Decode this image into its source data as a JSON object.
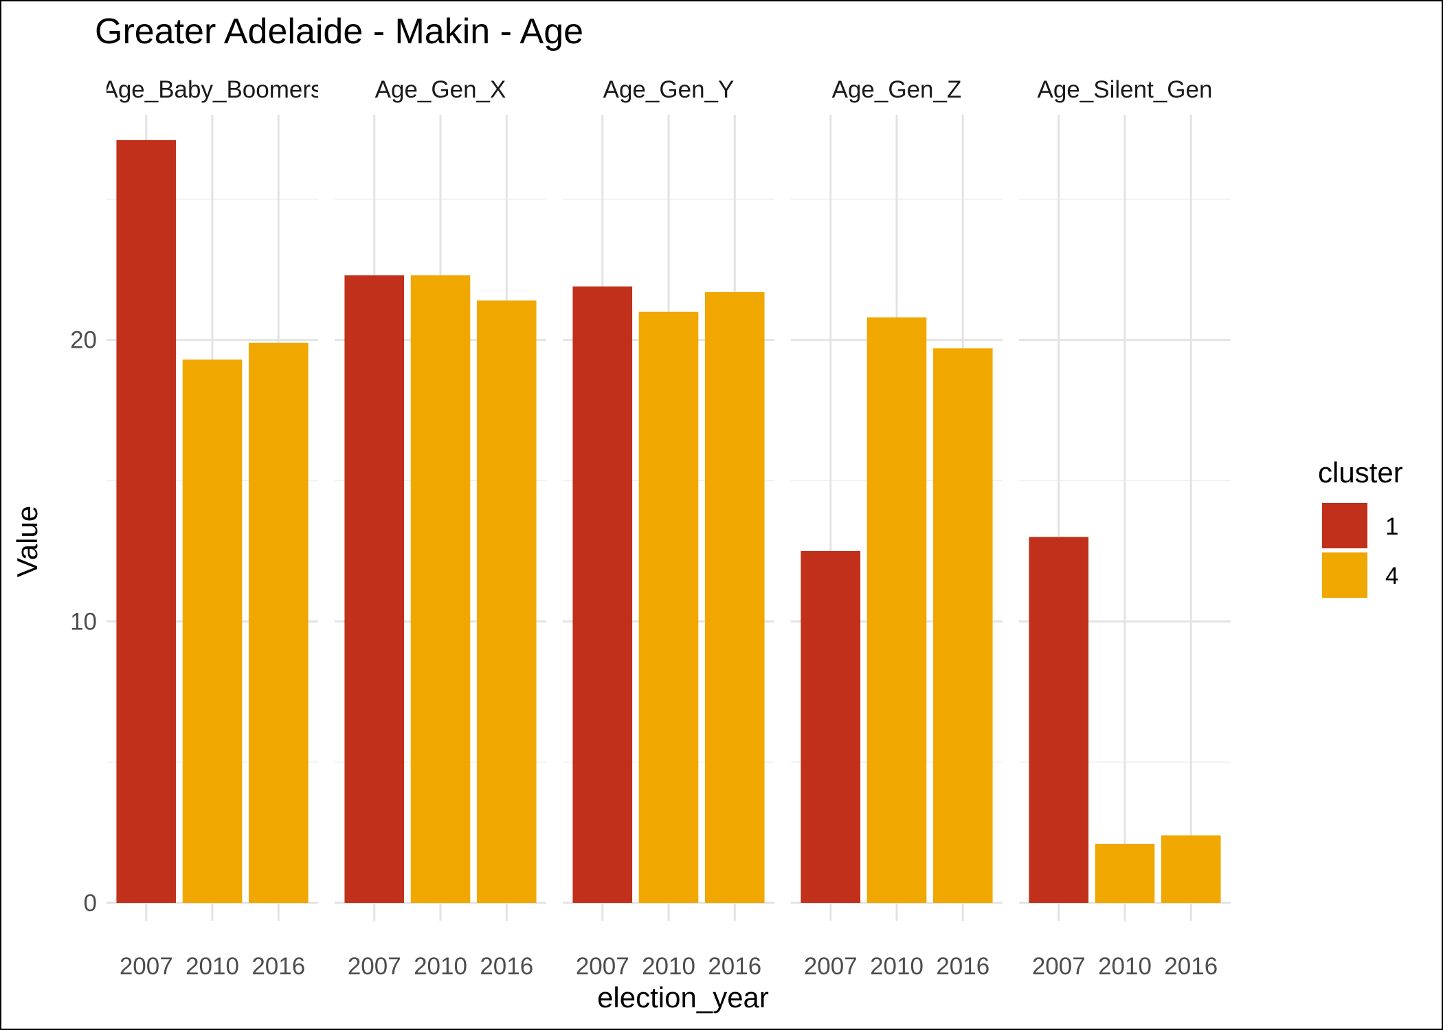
{
  "chart_data": {
    "type": "bar",
    "title": "Greater Adelaide - Makin - Age",
    "xlabel": "election_year",
    "ylabel": "Value",
    "ylim": [
      0,
      28
    ],
    "y_ticks": [
      0,
      10,
      20
    ],
    "grid": true,
    "legend": {
      "title": "cluster",
      "placement": "right",
      "entries": [
        {
          "label": "1",
          "color": "#C0301A"
        },
        {
          "label": "4",
          "color": "#F0A800"
        }
      ]
    },
    "categories": [
      "2007",
      "2010",
      "2016"
    ],
    "facets": [
      {
        "name": "Age_Baby_Boomers",
        "strip_label": "Age_Baby_Boomers",
        "bars": [
          {
            "x": "2007",
            "value": 27.1,
            "cluster": "1"
          },
          {
            "x": "2010",
            "value": 19.3,
            "cluster": "4"
          },
          {
            "x": "2016",
            "value": 19.9,
            "cluster": "4"
          }
        ]
      },
      {
        "name": "Age_Gen_X",
        "strip_label": "Age_Gen_X",
        "bars": [
          {
            "x": "2007",
            "value": 22.3,
            "cluster": "1"
          },
          {
            "x": "2010",
            "value": 22.3,
            "cluster": "4"
          },
          {
            "x": "2016",
            "value": 21.4,
            "cluster": "4"
          }
        ]
      },
      {
        "name": "Age_Gen_Y",
        "strip_label": "Age_Gen_Y",
        "bars": [
          {
            "x": "2007",
            "value": 21.9,
            "cluster": "1"
          },
          {
            "x": "2010",
            "value": 21.0,
            "cluster": "4"
          },
          {
            "x": "2016",
            "value": 21.7,
            "cluster": "4"
          }
        ]
      },
      {
        "name": "Age_Gen_Z",
        "strip_label": "Age_Gen_Z",
        "bars": [
          {
            "x": "2007",
            "value": 12.5,
            "cluster": "1"
          },
          {
            "x": "2010",
            "value": 20.8,
            "cluster": "4"
          },
          {
            "x": "2016",
            "value": 19.7,
            "cluster": "4"
          }
        ]
      },
      {
        "name": "Age_Silent_Gen",
        "strip_label": "Age_Silent_Gen",
        "bars": [
          {
            "x": "2007",
            "value": 13.0,
            "cluster": "1"
          },
          {
            "x": "2010",
            "value": 2.1,
            "cluster": "4"
          },
          {
            "x": "2016",
            "value": 2.4,
            "cluster": "4"
          }
        ]
      }
    ]
  }
}
